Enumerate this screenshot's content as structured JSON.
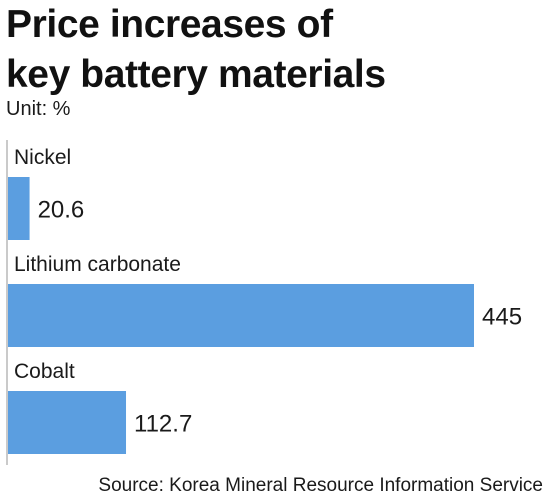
{
  "title_line1": "Price increases of",
  "title_line2": "key battery materials",
  "unit": "Unit: %",
  "source": "Source: Korea Mineral Resource Information Service",
  "colors": {
    "bar": "#5b9ee0",
    "axis": "#b8b8b8",
    "text": "#1a1a1a"
  },
  "chart_data": {
    "type": "bar",
    "orientation": "horizontal",
    "categories": [
      "Nickel",
      "Lithium carbonate",
      "Cobalt"
    ],
    "values": [
      20.6,
      445,
      112.7
    ],
    "value_labels": [
      "20.6",
      "445",
      "112.7"
    ],
    "xlim": [
      0,
      445
    ],
    "grid": false,
    "legend": "none"
  }
}
